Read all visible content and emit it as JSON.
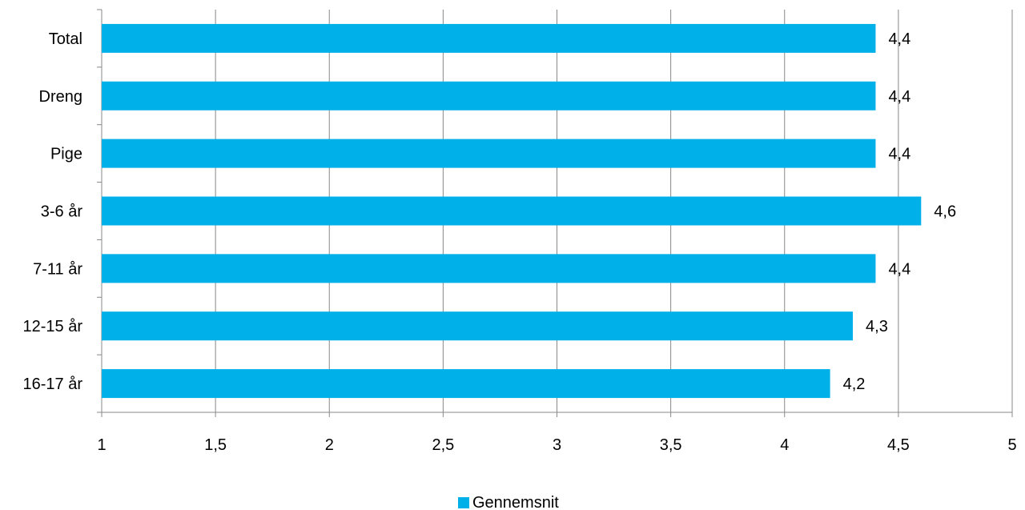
{
  "chart_data": {
    "type": "bar",
    "orientation": "horizontal",
    "categories": [
      "Total",
      "Dreng",
      "Pige",
      "3-6 år",
      "7-11 år",
      "12-15 år",
      "16-17 år"
    ],
    "series": [
      {
        "name": "Gennemsnit",
        "values": [
          4.4,
          4.4,
          4.4,
          4.6,
          4.4,
          4.3,
          4.2
        ],
        "labels": [
          "4,4",
          "4,4",
          "4,4",
          "4,6",
          "4,4",
          "4,3",
          "4,2"
        ]
      }
    ],
    "xlim": [
      1,
      5
    ],
    "x_ticks": [
      1,
      1.5,
      2,
      2.5,
      3,
      3.5,
      4,
      4.5,
      5
    ],
    "x_tick_labels": [
      "1",
      "1,5",
      "2",
      "2,5",
      "3",
      "3,5",
      "4",
      "4,5",
      "5"
    ],
    "grid": "vertical",
    "legend_position": "bottom",
    "colors": {
      "bar": "#00B0E8",
      "grid": "#888888",
      "axis": "#888888"
    }
  }
}
